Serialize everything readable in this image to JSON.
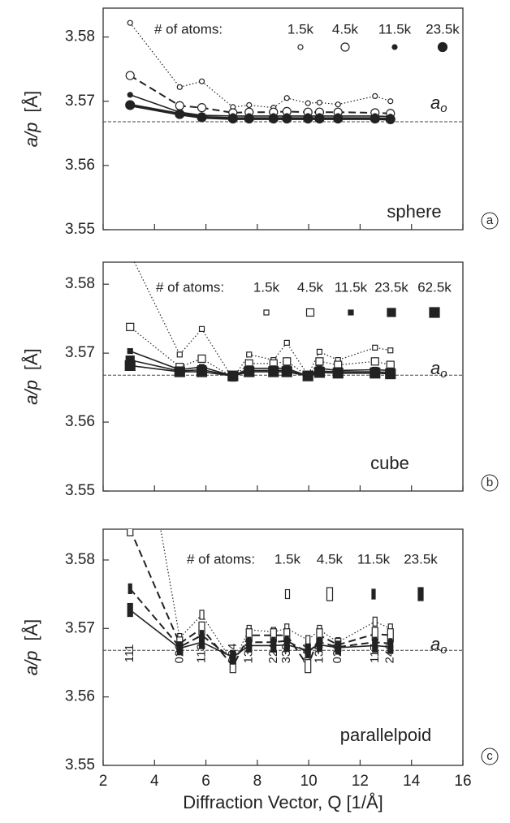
{
  "chart_data": [
    {
      "type": "line",
      "ylabel": "a/p",
      "yunit": "[Å]",
      "annotation": "sphere",
      "panel_label": "a",
      "legend_title": "# of atoms:",
      "reference_line": {
        "value": 3.5668,
        "label": "a",
        "label_subscript": "o"
      },
      "x": [
        3.05,
        4.98,
        5.84,
        7.05,
        7.68,
        8.63,
        9.15,
        9.97,
        10.42,
        11.14,
        12.58,
        13.18
      ],
      "xlim": [
        2,
        16
      ],
      "xticks": [
        2,
        4,
        6,
        8,
        10,
        12,
        14,
        16
      ],
      "ylim": [
        3.55,
        3.5845
      ],
      "yticks": [
        3.55,
        3.56,
        3.57,
        3.58
      ],
      "series": [
        {
          "name": "1.5k",
          "color": "#222222",
          "marker": "circle",
          "filled": false,
          "line_style": "dotted",
          "values": [
            3.5822,
            3.5722,
            3.5731,
            3.5691,
            3.5694,
            3.569,
            3.5705,
            3.5697,
            3.5698,
            3.5695,
            3.5708,
            3.57
          ]
        },
        {
          "name": "4.5k",
          "color": "#222222",
          "marker": "circle",
          "filled": false,
          "line_style": "dashed",
          "values": [
            3.574,
            3.5693,
            3.569,
            3.5682,
            3.5683,
            3.5683,
            3.5684,
            3.5683,
            3.5683,
            3.5683,
            3.5682,
            3.5681
          ]
        },
        {
          "name": "11.5k",
          "color": "#222222",
          "marker": "circle",
          "filled": true,
          "line_style": "solid",
          "values": [
            3.571,
            3.5683,
            3.5678,
            3.5677,
            3.5677,
            3.5677,
            3.5677,
            3.5677,
            3.5677,
            3.5677,
            3.5677,
            3.5676
          ]
        },
        {
          "name": "23.5k",
          "color": "#222222",
          "marker": "circle",
          "filled": true,
          "line_style": "thick",
          "values": [
            3.5694,
            3.568,
            3.5675,
            3.5673,
            3.5673,
            3.5673,
            3.5673,
            3.5673,
            3.5673,
            3.5673,
            3.5673,
            3.5672
          ]
        }
      ]
    },
    {
      "type": "line",
      "ylabel": "a/p",
      "yunit": "[Å]",
      "annotation": "cube",
      "panel_label": "b",
      "legend_title": "# of atoms:",
      "reference_line": {
        "value": 3.5668,
        "label": "a",
        "label_subscript": "o"
      },
      "x": [
        3.05,
        4.98,
        5.84,
        7.05,
        7.68,
        8.63,
        9.15,
        9.97,
        10.42,
        11.14,
        12.58,
        13.18
      ],
      "xlim": [
        2,
        16
      ],
      "xticks": [
        2,
        4,
        6,
        8,
        10,
        12,
        14,
        16
      ],
      "ylim": [
        3.55,
        3.5832
      ],
      "yticks": [
        3.55,
        3.56,
        3.57,
        3.58
      ],
      "series": [
        {
          "name": "1.5k",
          "color": "#222222",
          "marker": "square",
          "filled": false,
          "line_style": "dotted",
          "values": [
            3.5845,
            3.5698,
            3.5735,
            3.5663,
            3.5698,
            3.569,
            3.5715,
            3.5668,
            3.5702,
            3.569,
            3.5708,
            3.5704
          ]
        },
        {
          "name": "4.5k",
          "color": "#222222",
          "marker": "square",
          "filled": false,
          "line_style": "dotted",
          "values": [
            3.5738,
            3.568,
            3.5692,
            3.5665,
            3.5685,
            3.5685,
            3.5688,
            3.5667,
            3.5688,
            3.5683,
            3.5688,
            3.5683
          ]
        },
        {
          "name": "11.5k",
          "color": "#222222",
          "marker": "square",
          "filled": true,
          "line_style": "solid",
          "values": [
            3.5703,
            3.5676,
            3.568,
            3.5667,
            3.5678,
            3.5678,
            3.5678,
            3.5667,
            3.5678,
            3.5675,
            3.5676,
            3.5675
          ]
        },
        {
          "name": "23.5k",
          "color": "#222222",
          "marker": "square",
          "filled": true,
          "line_style": "solid",
          "values": [
            3.569,
            3.5674,
            3.5676,
            3.5667,
            3.5675,
            3.5675,
            3.5675,
            3.5667,
            3.5674,
            3.5673,
            3.5673,
            3.5672
          ]
        },
        {
          "name": "62.5k",
          "color": "#222222",
          "marker": "square",
          "filled": true,
          "line_style": "solid",
          "values": [
            3.5682,
            3.5673,
            3.5673,
            3.5667,
            3.5673,
            3.5673,
            3.5673,
            3.5667,
            3.5672,
            3.5671,
            3.5671,
            3.567
          ]
        }
      ]
    },
    {
      "type": "line",
      "ylabel": "a/p",
      "yunit": "[Å]",
      "annotation": "parallelpoid",
      "panel_label": "c",
      "legend_title": "# of atoms:",
      "reference_line": {
        "value": 3.5668,
        "label": "a",
        "label_subscript": "o"
      },
      "xlabel": "Diffraction Vector, Q    [1/Å]",
      "reflections": [
        "111",
        "022",
        "113",
        "004",
        "133",
        "224",
        "333",
        "044",
        "135",
        "026",
        "117",
        "246"
      ],
      "x": [
        3.05,
        4.98,
        5.84,
        7.05,
        7.68,
        8.63,
        9.15,
        9.97,
        10.42,
        11.14,
        12.58,
        13.18
      ],
      "xlim": [
        2,
        16
      ],
      "xticks": [
        2,
        4,
        6,
        8,
        10,
        12,
        14,
        16
      ],
      "ylim": [
        3.55,
        3.5845
      ],
      "yticks": [
        3.55,
        3.56,
        3.57,
        3.58
      ],
      "series": [
        {
          "name": "1.5k",
          "color": "#222222",
          "marker": "rect",
          "filled": false,
          "line_style": "dotted",
          "values": [
            3.61,
            3.5686,
            3.572,
            3.565,
            3.5698,
            3.5695,
            3.57,
            3.5683,
            3.5698,
            3.568,
            3.571,
            3.57
          ]
        },
        {
          "name": "4.5k",
          "color": "#222222",
          "marker": "rect",
          "filled": false,
          "line_style": "dashed",
          "values": [
            3.5845,
            3.5678,
            3.57,
            3.5645,
            3.569,
            3.569,
            3.569,
            3.5645,
            3.569,
            3.5676,
            3.5692,
            3.569
          ]
        },
        {
          "name": "11.5k",
          "color": "#222222",
          "marker": "rect",
          "filled": true,
          "line_style": "dashed",
          "values": [
            3.5758,
            3.5673,
            3.569,
            3.5655,
            3.568,
            3.568,
            3.5682,
            3.5665,
            3.568,
            3.5673,
            3.568,
            3.5678
          ]
        },
        {
          "name": "23.5k",
          "color": "#222222",
          "marker": "rect",
          "filled": true,
          "line_style": "solid",
          "values": [
            3.5727,
            3.5671,
            3.568,
            3.5658,
            3.5675,
            3.5675,
            3.5676,
            3.5668,
            3.5676,
            3.5672,
            3.5675,
            3.5673
          ]
        }
      ]
    }
  ]
}
